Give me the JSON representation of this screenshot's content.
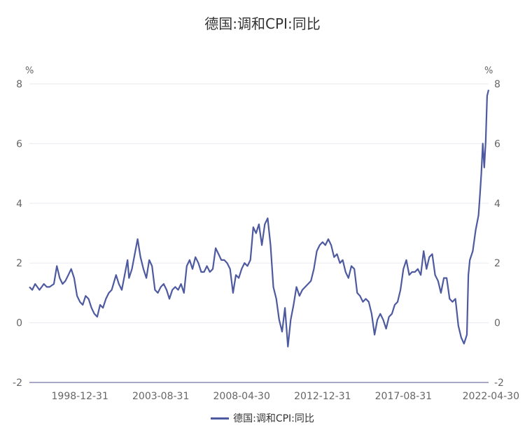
{
  "chart_data": {
    "type": "line",
    "title": "德国:调和CPI:同比",
    "unit_left": "%",
    "unit_right": "%",
    "ylim": [
      -2,
      8
    ],
    "y_ticks": [
      "-2",
      "0",
      "2",
      "4",
      "6",
      "8"
    ],
    "x_range": [
      "1996-01-31",
      "2022-04-30"
    ],
    "x_ticks": [
      "1998-12-31",
      "2003-08-31",
      "2008-04-30",
      "2012-12-31",
      "2017-08-31",
      "2022-04-30"
    ],
    "grid": true,
    "legend_position": "bottom",
    "color": "#4e5aa0",
    "series": [
      {
        "name": "德国:调和CPI:同比",
        "points": [
          [
            "1996-01-31",
            1.2
          ],
          [
            "1996-03-31",
            1.1
          ],
          [
            "1996-05-31",
            1.3
          ],
          [
            "1996-08-31",
            1.1
          ],
          [
            "1996-11-31",
            1.3
          ],
          [
            "1997-01-31",
            1.2
          ],
          [
            "1997-03-31",
            1.2
          ],
          [
            "1997-06-30",
            1.3
          ],
          [
            "1997-08-31",
            1.9
          ],
          [
            "1997-10-31",
            1.5
          ],
          [
            "1997-12-31",
            1.3
          ],
          [
            "1998-02-28",
            1.4
          ],
          [
            "1998-04-30",
            1.6
          ],
          [
            "1998-06-30",
            1.8
          ],
          [
            "1998-08-31",
            1.5
          ],
          [
            "1998-10-31",
            0.9
          ],
          [
            "1998-12-31",
            0.7
          ],
          [
            "1999-02-28",
            0.6
          ],
          [
            "1999-04-30",
            0.9
          ],
          [
            "1999-06-30",
            0.8
          ],
          [
            "1999-08-31",
            0.5
          ],
          [
            "1999-10-31",
            0.3
          ],
          [
            "1999-12-31",
            0.2
          ],
          [
            "2000-02-29",
            0.6
          ],
          [
            "2000-04-30",
            0.5
          ],
          [
            "2000-06-30",
            0.8
          ],
          [
            "2000-08-31",
            1.0
          ],
          [
            "2000-10-31",
            1.1
          ],
          [
            "2001-01-31",
            1.6
          ],
          [
            "2001-03-31",
            1.3
          ],
          [
            "2001-05-31",
            1.1
          ],
          [
            "2001-07-31",
            1.6
          ],
          [
            "2001-09-30",
            2.1
          ],
          [
            "2001-10-31",
            1.5
          ],
          [
            "2001-12-31",
            1.8
          ],
          [
            "2002-02-28",
            2.3
          ],
          [
            "2002-04-30",
            2.8
          ],
          [
            "2002-06-30",
            2.2
          ],
          [
            "2002-08-31",
            1.8
          ],
          [
            "2002-10-31",
            1.5
          ],
          [
            "2002-12-31",
            2.1
          ],
          [
            "2003-02-28",
            1.9
          ],
          [
            "2003-04-30",
            1.1
          ],
          [
            "2003-06-30",
            1.0
          ],
          [
            "2003-08-31",
            1.2
          ],
          [
            "2003-10-31",
            1.3
          ],
          [
            "2003-12-31",
            1.1
          ],
          [
            "2004-02-29",
            0.8
          ],
          [
            "2004-04-30",
            1.1
          ],
          [
            "2004-06-30",
            1.2
          ],
          [
            "2004-08-31",
            1.1
          ],
          [
            "2004-10-31",
            1.3
          ],
          [
            "2004-12-31",
            1.0
          ],
          [
            "2005-02-28",
            1.9
          ],
          [
            "2005-04-30",
            2.1
          ],
          [
            "2005-06-30",
            1.8
          ],
          [
            "2005-08-31",
            2.2
          ],
          [
            "2005-10-31",
            2.0
          ],
          [
            "2005-12-31",
            1.7
          ],
          [
            "2006-02-28",
            1.7
          ],
          [
            "2006-04-30",
            1.9
          ],
          [
            "2006-06-30",
            1.7
          ],
          [
            "2006-08-31",
            1.8
          ],
          [
            "2006-10-31",
            2.5
          ],
          [
            "2006-12-31",
            2.3
          ],
          [
            "2007-02-28",
            2.1
          ],
          [
            "2007-04-30",
            2.1
          ],
          [
            "2007-06-30",
            2.0
          ],
          [
            "2007-08-31",
            1.8
          ],
          [
            "2007-10-31",
            1.0
          ],
          [
            "2007-12-31",
            1.6
          ],
          [
            "2008-02-29",
            1.5
          ],
          [
            "2008-04-30",
            1.8
          ],
          [
            "2008-06-30",
            2.0
          ],
          [
            "2008-08-31",
            1.9
          ],
          [
            "2008-10-31",
            2.1
          ],
          [
            "2008-12-31",
            3.2
          ],
          [
            "2009-02-28",
            3.0
          ],
          [
            "2009-04-30",
            3.3
          ],
          [
            "2009-06-30",
            2.6
          ],
          [
            "2009-08-31",
            3.3
          ],
          [
            "2009-10-31",
            3.5
          ],
          [
            "2009-12-31",
            2.6
          ],
          [
            "2010-02-28",
            1.2
          ],
          [
            "2010-04-30",
            0.8
          ],
          [
            "2010-06-30",
            0.1
          ],
          [
            "2010-08-31",
            -0.3
          ],
          [
            "2010-10-31",
            0.5
          ],
          [
            "2010-12-31",
            -0.8
          ],
          [
            "2011-02-28",
            0.1
          ],
          [
            "2011-04-30",
            0.6
          ],
          [
            "2011-06-30",
            1.2
          ],
          [
            "2011-08-31",
            0.9
          ],
          [
            "2011-10-31",
            1.1
          ],
          [
            "2011-12-31",
            1.2
          ],
          [
            "2012-02-29",
            1.3
          ],
          [
            "2012-04-30",
            1.4
          ],
          [
            "2012-06-30",
            1.8
          ],
          [
            "2012-08-31",
            2.4
          ],
          [
            "2012-10-31",
            2.6
          ],
          [
            "2012-12-31",
            2.7
          ],
          [
            "2013-02-28",
            2.6
          ],
          [
            "2013-04-30",
            2.8
          ],
          [
            "2013-06-30",
            2.6
          ],
          [
            "2013-08-31",
            2.2
          ],
          [
            "2013-10-31",
            2.3
          ],
          [
            "2013-12-31",
            2.0
          ],
          [
            "2014-02-28",
            2.1
          ],
          [
            "2014-04-30",
            1.7
          ],
          [
            "2014-06-30",
            1.5
          ],
          [
            "2014-08-31",
            1.9
          ],
          [
            "2014-10-31",
            1.8
          ],
          [
            "2014-12-31",
            1.0
          ],
          [
            "2015-02-28",
            0.9
          ],
          [
            "2015-04-30",
            0.7
          ],
          [
            "2015-06-30",
            0.8
          ],
          [
            "2015-08-31",
            0.7
          ],
          [
            "2015-10-31",
            0.3
          ],
          [
            "2015-12-31",
            -0.4
          ],
          [
            "2016-02-29",
            0.1
          ],
          [
            "2016-04-30",
            0.3
          ],
          [
            "2016-06-30",
            0.1
          ],
          [
            "2016-08-31",
            -0.2
          ],
          [
            "2016-10-31",
            0.2
          ],
          [
            "2016-12-31",
            0.3
          ],
          [
            "2017-02-28",
            0.6
          ],
          [
            "2017-04-30",
            0.7
          ],
          [
            "2017-06-30",
            1.1
          ],
          [
            "2017-08-31",
            1.8
          ],
          [
            "2017-10-31",
            2.1
          ],
          [
            "2017-12-31",
            1.6
          ],
          [
            "2018-02-28",
            1.7
          ],
          [
            "2018-04-30",
            1.7
          ],
          [
            "2018-06-30",
            1.8
          ],
          [
            "2018-08-31",
            1.6
          ],
          [
            "2018-10-31",
            2.4
          ],
          [
            "2018-12-31",
            1.8
          ],
          [
            "2019-02-28",
            2.2
          ],
          [
            "2019-04-30",
            2.3
          ],
          [
            "2019-06-30",
            1.6
          ],
          [
            "2019-08-31",
            1.4
          ],
          [
            "2019-10-31",
            1.0
          ],
          [
            "2019-12-31",
            1.5
          ],
          [
            "2020-02-29",
            1.5
          ],
          [
            "2020-04-30",
            0.8
          ],
          [
            "2020-06-30",
            0.7
          ],
          [
            "2020-08-31",
            0.8
          ],
          [
            "2020-10-31",
            -0.1
          ],
          [
            "2020-12-31",
            -0.5
          ],
          [
            "2021-02-28",
            -0.7
          ],
          [
            "2021-04-30",
            -0.4
          ],
          [
            "2021-05-31",
            1.6
          ],
          [
            "2021-06-30",
            2.1
          ],
          [
            "2021-08-31",
            2.4
          ],
          [
            "2021-10-31",
            3.1
          ],
          [
            "2021-12-31",
            3.6
          ],
          [
            "2022-01-31",
            4.3
          ],
          [
            "2022-02-28",
            5.0
          ],
          [
            "2022-03-31",
            6.0
          ],
          [
            "2022-04-30",
            5.2
          ],
          [
            "2022-05-31",
            6.1
          ],
          [
            "2022-06-30",
            7.6
          ],
          [
            "2022-07-31",
            7.8
          ]
        ]
      }
    ]
  }
}
